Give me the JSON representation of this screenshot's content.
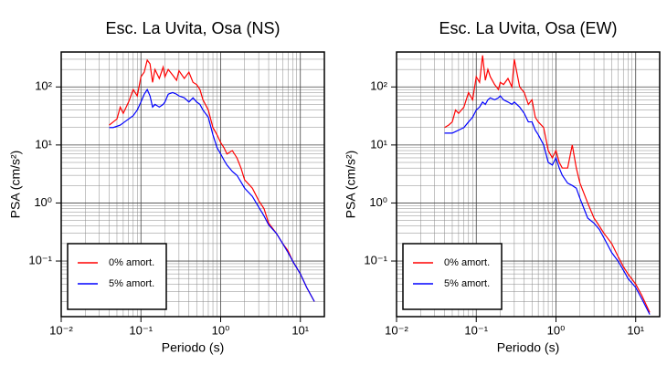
{
  "chart_data": [
    {
      "type": "line",
      "title": "Esc. La Uvita, Osa (NS)",
      "x_label": "Periodo (s)",
      "y_label": "PSA (cm/s²)",
      "log_x": true,
      "log_y": true,
      "grid": true,
      "legend": "lower left",
      "xlim": [
        0.01,
        20
      ],
      "ylim": [
        0.011,
        400
      ],
      "xticks": [
        {
          "value": 0.01,
          "label": "10⁻²"
        },
        {
          "value": 0.1,
          "label": "10⁻¹"
        },
        {
          "value": 1,
          "label": "10⁰"
        },
        {
          "value": 10,
          "label": "10¹"
        }
      ],
      "yticks": [
        {
          "value": 0.1,
          "label": "10⁻¹"
        },
        {
          "value": 1,
          "label": "10⁰"
        },
        {
          "value": 10,
          "label": "10¹"
        },
        {
          "value": 100,
          "label": "10²"
        }
      ],
      "xminor": [
        0.02,
        0.03,
        0.04,
        0.05,
        0.06,
        0.07,
        0.08,
        0.09,
        0.2,
        0.3,
        0.4,
        0.5,
        0.6,
        0.7,
        0.8,
        0.9,
        2,
        3,
        4,
        5,
        6,
        7,
        8,
        9
      ],
      "yminor": [
        0.02,
        0.03,
        0.04,
        0.05,
        0.06,
        0.07,
        0.08,
        0.09,
        0.2,
        0.3,
        0.4,
        0.5,
        0.6,
        0.7,
        0.8,
        0.9,
        2,
        3,
        4,
        5,
        6,
        7,
        8,
        9,
        20,
        30,
        40,
        50,
        60,
        70,
        80,
        90,
        200,
        300,
        400
      ],
      "x": [
        0.04,
        0.045,
        0.05,
        0.055,
        0.06,
        0.07,
        0.08,
        0.09,
        0.1,
        0.11,
        0.12,
        0.13,
        0.14,
        0.15,
        0.17,
        0.19,
        0.2,
        0.22,
        0.25,
        0.28,
        0.3,
        0.35,
        0.4,
        0.45,
        0.5,
        0.55,
        0.6,
        0.7,
        0.8,
        0.9,
        1.0,
        1.1,
        1.2,
        1.4,
        1.6,
        1.8,
        2.0,
        2.5,
        3.0,
        3.5,
        4,
        5,
        6,
        7,
        8,
        10,
        12,
        15
      ],
      "series": [
        {
          "name": "0% amort.",
          "color": "#ff0000",
          "values": [
            22,
            25,
            28,
            45,
            35,
            55,
            90,
            70,
            150,
            180,
            290,
            250,
            120,
            200,
            140,
            220,
            150,
            200,
            160,
            130,
            190,
            140,
            180,
            120,
            110,
            90,
            60,
            40,
            20,
            15,
            11,
            9,
            7,
            8,
            6,
            4,
            2.5,
            1.8,
            1.1,
            0.8,
            0.45,
            0.3,
            0.2,
            0.15,
            0.1,
            0.06,
            0.035,
            0.02
          ]
        },
        {
          "name": "5% amort.",
          "color": "#0000ff",
          "values": [
            20,
            20,
            21,
            22,
            24,
            28,
            32,
            40,
            55,
            75,
            90,
            70,
            45,
            50,
            45,
            50,
            55,
            75,
            80,
            75,
            70,
            65,
            55,
            65,
            55,
            50,
            40,
            30,
            15,
            9,
            7,
            5.5,
            4.5,
            3.5,
            3,
            2.3,
            1.8,
            1.3,
            0.85,
            0.6,
            0.42,
            0.3,
            0.2,
            0.14,
            0.1,
            0.06,
            0.035,
            0.02
          ]
        }
      ]
    },
    {
      "type": "line",
      "title": "Esc. La Uvita, Osa (EW)",
      "x_label": "Periodo (s)",
      "y_label": "PSA (cm/s²)",
      "log_x": true,
      "log_y": true,
      "grid": true,
      "legend": "lower left",
      "xlim": [
        0.01,
        20
      ],
      "ylim": [
        0.011,
        400
      ],
      "xticks": [
        {
          "value": 0.01,
          "label": "10⁻²"
        },
        {
          "value": 0.1,
          "label": "10⁻¹"
        },
        {
          "value": 1,
          "label": "10⁰"
        },
        {
          "value": 10,
          "label": "10¹"
        }
      ],
      "yticks": [
        {
          "value": 0.1,
          "label": "10⁻¹"
        },
        {
          "value": 1,
          "label": "10⁰"
        },
        {
          "value": 10,
          "label": "10¹"
        },
        {
          "value": 100,
          "label": "10²"
        }
      ],
      "xminor": [
        0.02,
        0.03,
        0.04,
        0.05,
        0.06,
        0.07,
        0.08,
        0.09,
        0.2,
        0.3,
        0.4,
        0.5,
        0.6,
        0.7,
        0.8,
        0.9,
        2,
        3,
        4,
        5,
        6,
        7,
        8,
        9
      ],
      "yminor": [
        0.02,
        0.03,
        0.04,
        0.05,
        0.06,
        0.07,
        0.08,
        0.09,
        0.2,
        0.3,
        0.4,
        0.5,
        0.6,
        0.7,
        0.8,
        0.9,
        2,
        3,
        4,
        5,
        6,
        7,
        8,
        9,
        20,
        30,
        40,
        50,
        60,
        70,
        80,
        90,
        200,
        300,
        400
      ],
      "x": [
        0.04,
        0.045,
        0.05,
        0.055,
        0.06,
        0.07,
        0.08,
        0.09,
        0.1,
        0.11,
        0.12,
        0.13,
        0.14,
        0.15,
        0.17,
        0.19,
        0.2,
        0.22,
        0.25,
        0.28,
        0.3,
        0.35,
        0.4,
        0.45,
        0.5,
        0.55,
        0.6,
        0.7,
        0.8,
        0.9,
        1.0,
        1.1,
        1.2,
        1.4,
        1.6,
        1.8,
        2.0,
        2.5,
        3.0,
        3.5,
        4,
        5,
        6,
        7,
        8,
        10,
        12,
        15
      ],
      "series": [
        {
          "name": "0% amort.",
          "color": "#ff0000",
          "values": [
            20,
            22,
            25,
            40,
            35,
            45,
            80,
            60,
            150,
            120,
            350,
            130,
            200,
            150,
            110,
            90,
            120,
            110,
            140,
            100,
            300,
            100,
            80,
            50,
            60,
            30,
            25,
            20,
            8,
            6,
            8,
            5,
            4,
            4,
            10,
            4,
            2.2,
            1.0,
            0.55,
            0.4,
            0.3,
            0.2,
            0.12,
            0.08,
            0.06,
            0.04,
            0.025,
            0.013
          ]
        },
        {
          "name": "5% amort.",
          "color": "#0000ff",
          "values": [
            16,
            16,
            16,
            17,
            18,
            20,
            25,
            30,
            40,
            45,
            55,
            50,
            60,
            65,
            60,
            65,
            70,
            60,
            55,
            50,
            55,
            45,
            35,
            25,
            25,
            18,
            15,
            10,
            5,
            4.5,
            6,
            4,
            3,
            2.2,
            2,
            1.8,
            1.2,
            0.55,
            0.45,
            0.35,
            0.25,
            0.14,
            0.1,
            0.07,
            0.05,
            0.035,
            0.022,
            0.012
          ]
        }
      ]
    }
  ]
}
